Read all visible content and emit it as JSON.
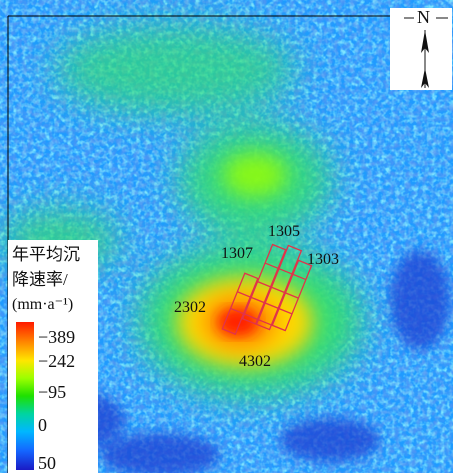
{
  "map": {
    "legend": {
      "title_lines": [
        "年平均沉",
        "降速率/",
        "(mm·a⁻¹)"
      ],
      "ticks": [
        "−389",
        "−242",
        "−95",
        "0",
        "50"
      ]
    },
    "north_arrow": {
      "label": "N"
    },
    "panel_labels": [
      {
        "id": "1305",
        "text": "1305"
      },
      {
        "id": "1307",
        "text": "1307"
      },
      {
        "id": "1303",
        "text": "1303"
      },
      {
        "id": "2302",
        "text": "2302"
      },
      {
        "id": "4302",
        "text": "4302"
      }
    ],
    "colors": {
      "background": "#1f9bff",
      "low_subsidence": "#43d6ff",
      "moderate": "#33e06a",
      "high": "#ffd800",
      "peak": "#ff2400",
      "panel_outline": "#e1334a",
      "uplift": "#1f3bd0"
    }
  }
}
